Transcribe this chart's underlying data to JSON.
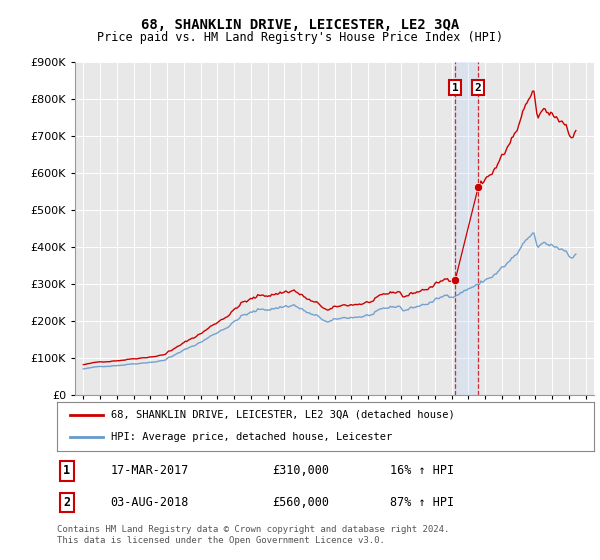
{
  "title": "68, SHANKLIN DRIVE, LEICESTER, LE2 3QA",
  "subtitle": "Price paid vs. HM Land Registry's House Price Index (HPI)",
  "background_color": "#ffffff",
  "plot_bg_color": "#e8e8e8",
  "hpi_color": "#6699cc",
  "price_color": "#cc0000",
  "footnote": "Contains HM Land Registry data © Crown copyright and database right 2024.\nThis data is licensed under the Open Government Licence v3.0.",
  "transaction1_date": "17-MAR-2017",
  "transaction1_price": "£310,000",
  "transaction1_hpi": "16% ↑ HPI",
  "transaction1_year": 2017.21,
  "transaction1_value": 310000,
  "transaction2_date": "03-AUG-2018",
  "transaction2_price": "£560,000",
  "transaction2_hpi": "87% ↑ HPI",
  "transaction2_year": 2018.58,
  "transaction2_value": 560000,
  "ylim": [
    0,
    900000
  ],
  "yticks": [
    0,
    100000,
    200000,
    300000,
    400000,
    500000,
    600000,
    700000,
    800000,
    900000
  ],
  "xlim_left": 1994.5,
  "xlim_right": 2025.5
}
